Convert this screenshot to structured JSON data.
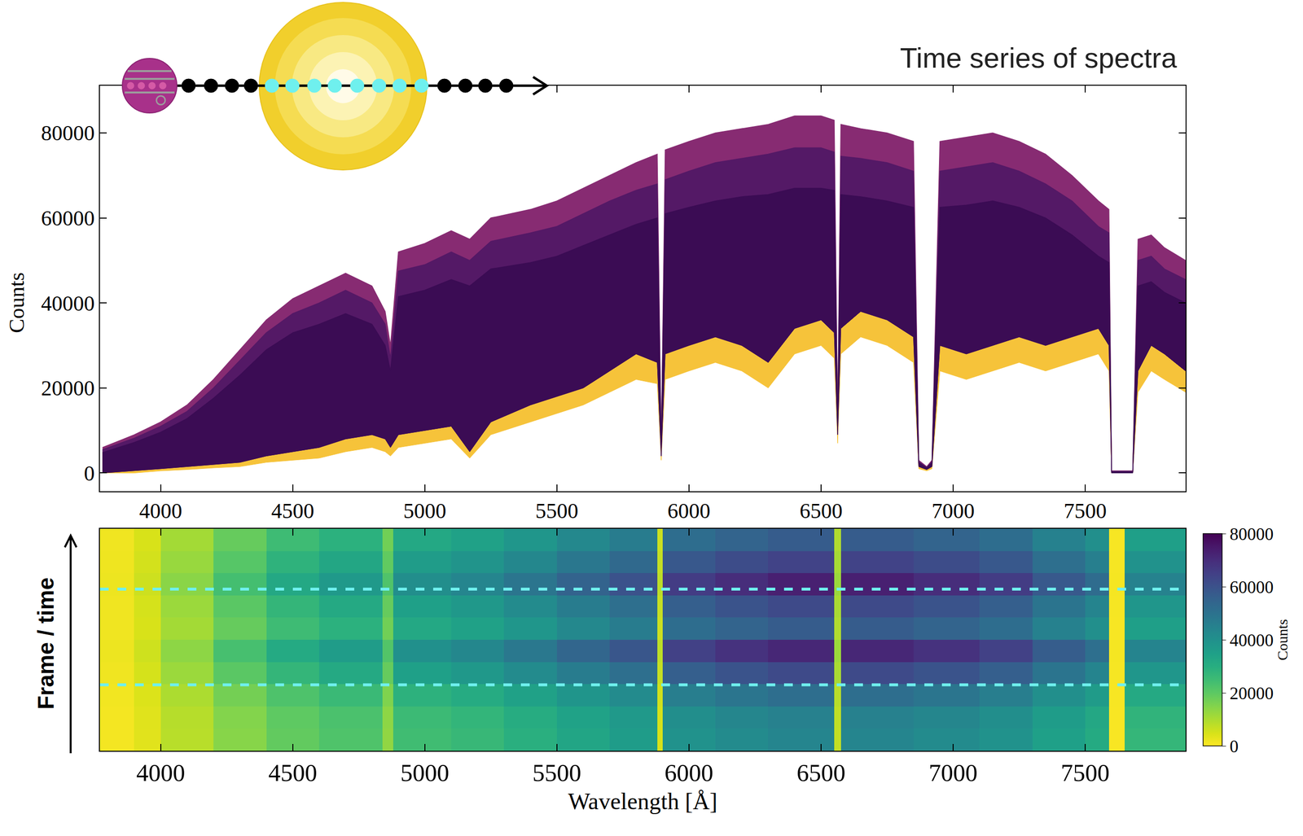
{
  "chart_data": [
    {
      "type": "area",
      "title": "Time series of spectra",
      "y_label": "Counts",
      "x": [
        3780,
        3900,
        4000,
        4100,
        4200,
        4300,
        4400,
        4500,
        4600,
        4700,
        4800,
        4850,
        4870,
        4900,
        5000,
        5100,
        5170,
        5250,
        5400,
        5500,
        5600,
        5700,
        5800,
        5880,
        5895,
        5910,
        6000,
        6100,
        6200,
        6300,
        6400,
        6500,
        6550,
        6563,
        6575,
        6650,
        6750,
        6850,
        6870,
        6900,
        6920,
        6950,
        7050,
        7150,
        7250,
        7350,
        7450,
        7550,
        7590,
        7600,
        7680,
        7700,
        7750,
        7800,
        7880
      ],
      "series": [
        {
          "color": "#872b72",
          "values": [
            6000,
            9000,
            12000,
            16000,
            22000,
            29000,
            36000,
            41000,
            44000,
            47000,
            44000,
            38000,
            30000,
            52000,
            54000,
            57000,
            55000,
            60000,
            62000,
            64000,
            67000,
            70000,
            73000,
            75000,
            6000,
            76000,
            78000,
            80000,
            81000,
            82000,
            84000,
            84000,
            83000,
            12000,
            82000,
            81000,
            80000,
            78000,
            3000,
            1500,
            3000,
            78000,
            79000,
            80000,
            78000,
            75000,
            70000,
            64000,
            62000,
            500,
            500,
            55000,
            56000,
            53000,
            50000
          ],
          "lower": [
            0,
            500,
            1000,
            1500,
            2000,
            2500,
            4000,
            5000,
            6000,
            8000,
            9000,
            8000,
            6000,
            9000,
            10000,
            11000,
            5000,
            12000,
            16000,
            18000,
            20000,
            24000,
            28000,
            26000,
            4000,
            28000,
            30000,
            32000,
            30000,
            26000,
            34000,
            36000,
            33000,
            9000,
            34000,
            38000,
            36000,
            32000,
            1500,
            800,
            1500,
            30000,
            28000,
            30000,
            32000,
            30000,
            32000,
            34000,
            30000,
            0,
            0,
            24000,
            30000,
            28000,
            24000
          ]
        },
        {
          "color": "#f6c33a",
          "values": [
            4800,
            7200,
            9600,
            12800,
            17600,
            23000,
            29000,
            33000,
            35000,
            37500,
            35000,
            30000,
            24000,
            41500,
            43000,
            45500,
            44000,
            48000,
            49500,
            51000,
            53500,
            56000,
            58500,
            60000,
            5000,
            61000,
            62500,
            64000,
            65000,
            65500,
            67000,
            67000,
            66500,
            10000,
            65500,
            65000,
            64000,
            62500,
            2400,
            1200,
            2400,
            62500,
            63000,
            64000,
            62500,
            60000,
            56000,
            51000,
            49500,
            300,
            300,
            44000,
            45000,
            42500,
            40000
          ],
          "lower": [
            0,
            0,
            500,
            800,
            1200,
            1500,
            2500,
            3000,
            3500,
            5000,
            6000,
            5000,
            4000,
            6000,
            7000,
            8000,
            3500,
            9000,
            12000,
            14000,
            16000,
            19000,
            22000,
            21000,
            3000,
            22000,
            24000,
            26000,
            24000,
            20000,
            28000,
            30000,
            27000,
            7000,
            28000,
            32000,
            30000,
            26000,
            1000,
            500,
            1000,
            24000,
            22000,
            24000,
            26000,
            24000,
            26000,
            28000,
            24000,
            0,
            0,
            19000,
            24000,
            22000,
            19000
          ]
        },
        {
          "color": "#541966",
          "values": [
            5500,
            8200,
            11000,
            14500,
            20000,
            26500,
            33000,
            37500,
            40000,
            43000,
            40000,
            35000,
            27000,
            47500,
            49000,
            52000,
            50000,
            54500,
            56500,
            58000,
            61000,
            64000,
            66500,
            68000,
            5500,
            69000,
            71000,
            73000,
            74000,
            75000,
            76500,
            76500,
            75500,
            11000,
            74500,
            74000,
            73000,
            71000,
            2700,
            1300,
            2700,
            71000,
            72000,
            73000,
            71000,
            68000,
            64000,
            58000,
            56500,
            400,
            400,
            50000,
            51000,
            48000,
            45500
          ],
          "lower": [
            0,
            500,
            1000,
            1500,
            2000,
            2500,
            4000,
            5000,
            6000,
            8000,
            9000,
            8000,
            6000,
            9000,
            10000,
            11000,
            5000,
            12000,
            16000,
            18000,
            20000,
            24000,
            28000,
            26000,
            4000,
            28000,
            30000,
            32000,
            30000,
            26000,
            34000,
            36000,
            33000,
            9000,
            34000,
            38000,
            36000,
            32000,
            1500,
            800,
            1500,
            30000,
            28000,
            30000,
            32000,
            30000,
            32000,
            34000,
            30000,
            0,
            0,
            24000,
            30000,
            28000,
            24000
          ]
        },
        {
          "color": "#3b0c54",
          "values": [
            4800,
            7200,
            9600,
            12800,
            17600,
            23000,
            29000,
            33000,
            35000,
            37500,
            35000,
            30000,
            24000,
            41500,
            43000,
            45500,
            44000,
            48000,
            49500,
            51000,
            53500,
            56000,
            58500,
            60000,
            5000,
            61000,
            62500,
            64000,
            65000,
            65500,
            67000,
            67000,
            66500,
            10000,
            65500,
            65000,
            64000,
            62500,
            2400,
            1200,
            2400,
            62500,
            63000,
            64000,
            62500,
            60000,
            56000,
            51000,
            49500,
            300,
            300,
            44000,
            45000,
            42500,
            40000
          ],
          "lower": [
            0,
            500,
            1000,
            1500,
            2000,
            2500,
            4000,
            5000,
            6000,
            8000,
            9000,
            8000,
            6000,
            9000,
            10000,
            11000,
            5000,
            12000,
            16000,
            18000,
            20000,
            24000,
            28000,
            26000,
            4000,
            28000,
            30000,
            32000,
            30000,
            26000,
            34000,
            36000,
            33000,
            9000,
            34000,
            38000,
            36000,
            32000,
            1500,
            800,
            1500,
            30000,
            28000,
            30000,
            32000,
            30000,
            32000,
            34000,
            30000,
            0,
            0,
            24000,
            30000,
            28000,
            24000
          ]
        }
      ],
      "xlim": [
        3770,
        7880
      ],
      "xticks": [
        4000,
        4500,
        5000,
        5500,
        6000,
        6500,
        7000,
        7500
      ],
      "ylim": [
        -4300,
        91100
      ],
      "yticks": [
        0,
        20000,
        40000,
        60000,
        80000
      ]
    },
    {
      "type": "heatmap",
      "x_label": "Wavelength [Å]",
      "y_label": "Frame / time",
      "x_edges": [
        3770,
        3900,
        4000,
        4200,
        4400,
        4600,
        4840,
        4880,
        5100,
        5300,
        5500,
        5700,
        5880,
        5900,
        6100,
        6300,
        6550,
        6575,
        6850,
        7100,
        7300,
        7500,
        7590,
        7650,
        7880
      ],
      "cells": [
        [
          1200,
          3600,
          8400,
          14400,
          19200,
          22200,
          13200,
          24600,
          26400,
          29400,
          33000,
          36000,
          4800,
          39600,
          42000,
          43800,
          7200,
          43800,
          42000,
          39600,
          34800,
          31200,
          600,
          27000
        ],
        [
          1200,
          3700,
          8700,
          14900,
          19800,
          22900,
          13600,
          25400,
          27300,
          30400,
          34100,
          37200,
          5000,
          40900,
          43400,
          45300,
          7400,
          45300,
          43400,
          40900,
          36000,
          32200,
          600,
          27900
        ],
        [
          1400,
          4200,
          9800,
          16800,
          22400,
          25900,
          15400,
          28700,
          30800,
          34300,
          38500,
          42000,
          5600,
          46200,
          49000,
          51100,
          8400,
          51100,
          49000,
          46200,
          40600,
          36400,
          700,
          31500
        ],
        [
          1700,
          5100,
          11900,
          20400,
          27200,
          31500,
          18700,
          34900,
          37400,
          41700,
          46800,
          51000,
          6800,
          56100,
          59500,
          62100,
          10200,
          62100,
          59500,
          56100,
          49300,
          44200,
          900,
          38300
        ],
        [
          2000,
          5900,
          13700,
          23500,
          31400,
          36300,
          21600,
          40200,
          43100,
          48000,
          53900,
          58800,
          7800,
          64700,
          68600,
          71500,
          11800,
          71500,
          68600,
          64700,
          56800,
          51000,
          1000,
          44100
        ],
        [
          1600,
          4700,
          10900,
          18700,
          25000,
          28900,
          17200,
          32000,
          34300,
          38200,
          42900,
          46800,
          6200,
          51500,
          54600,
          56900,
          9400,
          56900,
          54600,
          51500,
          45200,
          40600,
          800,
          35100
        ],
        [
          1700,
          5100,
          11900,
          20400,
          27200,
          31500,
          18700,
          34900,
          37400,
          41700,
          46800,
          51000,
          6800,
          56100,
          59500,
          62100,
          10200,
          62100,
          59500,
          56100,
          49300,
          44200,
          900,
          38300
        ],
        [
          2000,
          6000,
          14000,
          24000,
          32000,
          37000,
          22000,
          41000,
          44000,
          49000,
          55000,
          60000,
          8000,
          66000,
          70000,
          73000,
          12000,
          73000,
          70000,
          66000,
          58000,
          52000,
          1000,
          45000
        ],
        [
          1800,
          5300,
          12300,
          21100,
          28200,
          32600,
          19400,
          36100,
          38700,
          43100,
          48400,
          52800,
          7000,
          58100,
          61600,
          64200,
          10600,
          64200,
          61600,
          58100,
          51000,
          45800,
          900,
          39600
        ],
        [
          1600,
          4700,
          10900,
          18700,
          25000,
          28900,
          17200,
          32000,
          34300,
          38200,
          42900,
          46800,
          6200,
          51500,
          54600,
          56900,
          9400,
          56900,
          54600,
          51500,
          45200,
          40600,
          800,
          35100
        ]
      ],
      "colorbar": {
        "range": [
          0,
          80000
        ],
        "ticks": [
          0,
          20000,
          40000,
          60000,
          80000
        ],
        "label": "Counts"
      },
      "xlim": [
        3770,
        7880
      ],
      "xticks": [
        4000,
        4500,
        5000,
        5500,
        6000,
        6500,
        7000,
        7500
      ],
      "tick_labels": "x",
      "transit_lines": [
        2.47,
        6.78
      ]
    }
  ]
}
